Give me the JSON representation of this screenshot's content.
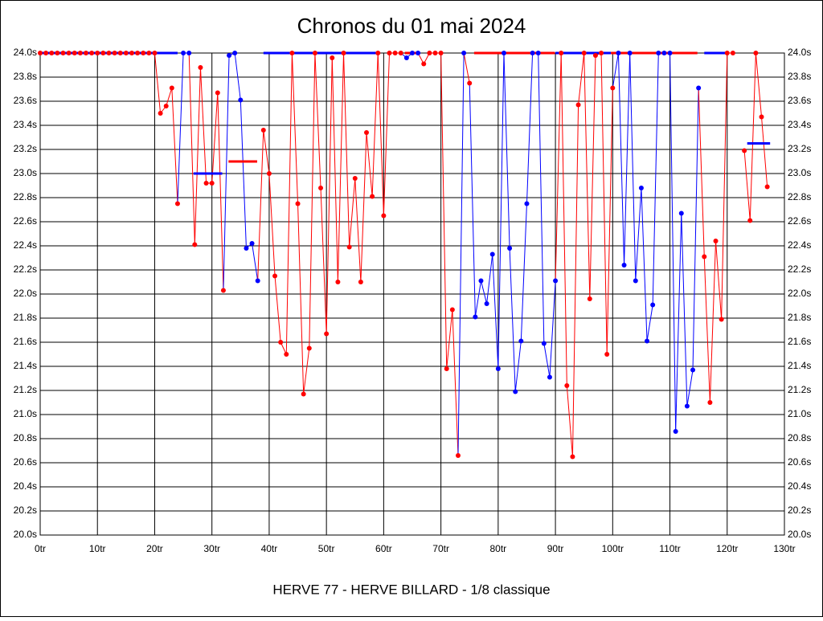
{
  "chart_data": {
    "type": "line",
    "title": "Chronos du 01 mai 2024",
    "subtitle": "HERVE 77 - HERVE BILLARD - 1/8 classique",
    "xlim": [
      0,
      130
    ],
    "xticks": [
      {
        "value": 0,
        "label": "0tr"
      },
      {
        "value": 10,
        "label": "10tr"
      },
      {
        "value": 20,
        "label": "20tr"
      },
      {
        "value": 30,
        "label": "30tr"
      },
      {
        "value": 40,
        "label": "40tr"
      },
      {
        "value": 50,
        "label": "50tr"
      },
      {
        "value": 60,
        "label": "60tr"
      },
      {
        "value": 70,
        "label": "70tr"
      },
      {
        "value": 80,
        "label": "80tr"
      },
      {
        "value": 90,
        "label": "90tr"
      },
      {
        "value": 100,
        "label": "100tr"
      },
      {
        "value": 110,
        "label": "110tr"
      },
      {
        "value": 120,
        "label": "120tr"
      },
      {
        "value": 130,
        "label": "130tr"
      }
    ],
    "ylim": [
      20,
      24
    ],
    "yticks": [
      {
        "value": 20,
        "label": "20.0s"
      },
      {
        "value": 20.2,
        "label": "20.2s"
      },
      {
        "value": 20.4,
        "label": "20.4s"
      },
      {
        "value": 20.6,
        "label": "20.6s"
      },
      {
        "value": 20.8,
        "label": "20.8s"
      },
      {
        "value": 21,
        "label": "21.0s"
      },
      {
        "value": 21.2,
        "label": "21.2s"
      },
      {
        "value": 21.4,
        "label": "21.4s"
      },
      {
        "value": 21.6,
        "label": "21.6s"
      },
      {
        "value": 21.8,
        "label": "21.8s"
      },
      {
        "value": 22,
        "label": "22.0s"
      },
      {
        "value": 22.2,
        "label": "22.2s"
      },
      {
        "value": 22.4,
        "label": "22.4s"
      },
      {
        "value": 22.6,
        "label": "22.6s"
      },
      {
        "value": 22.8,
        "label": "22.8s"
      },
      {
        "value": 23,
        "label": "23.0s"
      },
      {
        "value": 23.2,
        "label": "23.2s"
      },
      {
        "value": 23.4,
        "label": "23.4s"
      },
      {
        "value": 23.6,
        "label": "23.6s"
      },
      {
        "value": 23.8,
        "label": "23.8s"
      },
      {
        "value": 24,
        "label": "24.0s"
      }
    ],
    "grid": true,
    "series": [
      {
        "color": "#ff0000",
        "x": [
          0,
          1,
          2,
          3,
          4,
          5,
          6,
          7,
          8,
          9,
          10,
          11,
          12,
          13,
          14,
          15,
          16,
          17,
          18,
          19,
          20,
          21,
          22,
          23,
          24,
          27,
          28,
          29,
          30,
          31,
          32,
          39,
          40,
          41,
          42,
          43,
          44,
          45,
          46,
          47,
          48,
          49,
          50,
          51,
          52,
          53,
          54,
          55,
          56,
          57,
          58,
          59,
          60,
          61,
          62,
          63,
          67,
          68,
          69,
          70,
          71,
          72,
          73,
          75,
          91,
          92,
          93,
          94,
          95,
          96,
          97,
          98,
          99,
          100,
          116,
          117,
          118,
          119,
          120,
          121,
          123,
          124,
          125,
          126,
          127
        ],
        "values": [
          24,
          24,
          24,
          24,
          24,
          24,
          24,
          24,
          24,
          24,
          24,
          24,
          24,
          24,
          24,
          24,
          24,
          24,
          24,
          24,
          24,
          23.5,
          23.56,
          23.71,
          22.75,
          22.41,
          23.88,
          22.92,
          22.92,
          23.67,
          22.03,
          23.36,
          23.0,
          22.15,
          21.6,
          21.5,
          24,
          22.75,
          21.17,
          21.55,
          24,
          22.88,
          21.67,
          23.96,
          22.1,
          24,
          22.39,
          22.96,
          22.1,
          23.34,
          22.81,
          24,
          22.65,
          24,
          24,
          24,
          23.91,
          24,
          24,
          24,
          21.38,
          21.87,
          20.66,
          23.75,
          24,
          21.24,
          20.65,
          23.57,
          24,
          21.96,
          23.98,
          24,
          21.5,
          23.71,
          22.31,
          21.1,
          22.44,
          21.79,
          24,
          24,
          23.19,
          22.61,
          24,
          23.47,
          22.89
        ]
      },
      {
        "color": "#0000ff",
        "x": [
          25,
          26,
          33,
          34,
          35,
          36,
          37,
          38,
          64,
          65,
          66,
          74,
          76,
          77,
          78,
          79,
          80,
          81,
          82,
          83,
          84,
          85,
          86,
          87,
          88,
          89,
          90,
          101,
          102,
          103,
          104,
          105,
          106,
          107,
          108,
          109,
          110,
          111,
          112,
          113,
          114,
          115
        ],
        "values": [
          24,
          24,
          23.98,
          24,
          23.61,
          22.38,
          22.42,
          22.11,
          23.96,
          24,
          24,
          24,
          21.81,
          22.11,
          21.92,
          22.33,
          21.38,
          24,
          22.38,
          21.19,
          21.61,
          22.75,
          24,
          24,
          21.59,
          21.31,
          22.11,
          24,
          22.24,
          24,
          22.11,
          22.88,
          21.61,
          21.91,
          24,
          24,
          24,
          20.86,
          22.67,
          21.07,
          21.37,
          23.71
        ]
      }
    ],
    "reference_lines": [
      {
        "color": "#0000ff",
        "value": 24,
        "x": [
          0,
          24
        ]
      },
      {
        "color": "#0000ff",
        "value": 23.0,
        "x": [
          26.8,
          31.8
        ]
      },
      {
        "color": "#ff0000",
        "value": 23.1,
        "x": [
          32.9,
          37.9
        ]
      },
      {
        "color": "#0000ff",
        "value": 24,
        "x": [
          39,
          58.7
        ]
      },
      {
        "color": "#ff0000",
        "value": 24,
        "x": [
          63.7,
          66
        ]
      },
      {
        "color": "#ff0000",
        "value": 24,
        "x": [
          75.8,
          89.9
        ]
      },
      {
        "color": "#0000ff",
        "value": 24,
        "x": [
          90,
          99.7
        ]
      },
      {
        "color": "#ff0000",
        "value": 24,
        "x": [
          99.7,
          114.8
        ]
      },
      {
        "color": "#0000ff",
        "value": 24,
        "x": [
          116,
          120
        ]
      },
      {
        "color": "#0000ff",
        "value": 23.25,
        "x": [
          123.5,
          127.5
        ]
      }
    ]
  }
}
